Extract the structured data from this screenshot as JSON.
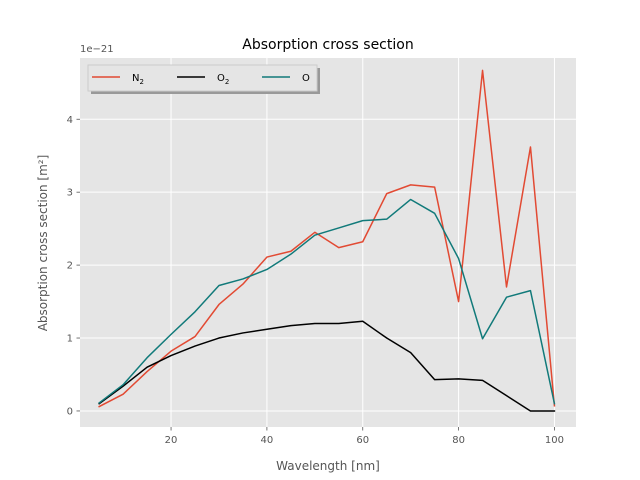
{
  "chart_data": {
    "type": "line",
    "title": "Absorption cross section",
    "xlabel": "Wavelength [nm]",
    "ylabel": "Absorption cross section [m²]",
    "y_offset_text": "1e−21",
    "xlim": [
      1,
      104.5
    ],
    "ylim": [
      -0.22,
      4.84
    ],
    "x_ticks": [
      20,
      40,
      60,
      80,
      100
    ],
    "y_ticks": [
      0,
      1,
      2,
      3,
      4
    ],
    "grid": true,
    "legend_position": "top-left",
    "x": [
      5,
      10,
      15,
      20,
      25,
      30,
      35,
      40,
      45,
      50,
      55,
      60,
      65,
      70,
      75,
      80,
      85,
      90,
      95,
      100
    ],
    "series": [
      {
        "name": "N",
        "name_sub": "2",
        "color": "#e24a33",
        "values": [
          0.06,
          0.23,
          0.54,
          0.82,
          1.02,
          1.46,
          1.74,
          2.11,
          2.19,
          2.45,
          2.24,
          2.32,
          2.98,
          3.1,
          3.07,
          1.5,
          4.67,
          1.7,
          3.62,
          0.07
        ]
      },
      {
        "name": "O",
        "name_sub": "2",
        "color": "#000000",
        "values": [
          0.1,
          0.34,
          0.6,
          0.76,
          0.89,
          1.0,
          1.07,
          1.12,
          1.17,
          1.2,
          1.2,
          1.23,
          1.0,
          0.8,
          0.43,
          0.44,
          0.42,
          0.21,
          0.0,
          0.0
        ]
      },
      {
        "name": "O",
        "name_sub": "",
        "color": "#117a7a",
        "values": [
          0.11,
          0.36,
          0.73,
          1.05,
          1.36,
          1.72,
          1.81,
          1.94,
          2.15,
          2.41,
          2.51,
          2.61,
          2.63,
          2.9,
          2.71,
          2.09,
          0.99,
          1.56,
          1.65,
          0.1
        ]
      }
    ]
  }
}
